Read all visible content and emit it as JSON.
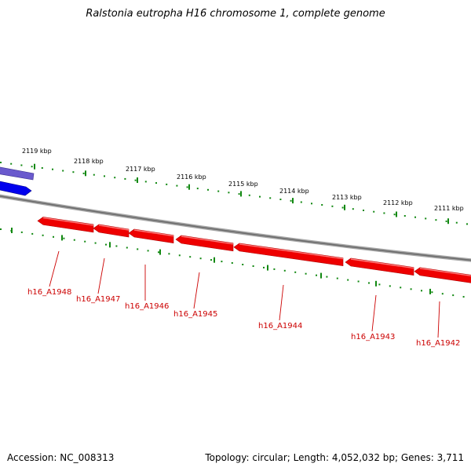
{
  "title": "Ralstonia eutropha H16 chromosome 1, complete genome",
  "footer": {
    "accession": "Accession: NC_008313",
    "topology": "Topology: circular; Length: 4,052,032 bp; Genes: 3,711"
  },
  "colors": {
    "backbone": "#7a7a7a",
    "forward_gene_blue": "#0000ee",
    "forward_gene_purple": "#6a5acd",
    "reverse_gene": "#ee0000",
    "gene_label": "#cc0000",
    "ticks": "#118811"
  },
  "ticks": [
    "2119 kbp",
    "2118 kbp",
    "2117 kbp",
    "2116 kbp",
    "2115 kbp",
    "2114 kbp",
    "2113 kbp",
    "2112 kbp",
    "2111 kbp"
  ],
  "genes": [
    {
      "label": "h16_A1948",
      "strand": "reverse"
    },
    {
      "label": "h16_A1947",
      "strand": "reverse"
    },
    {
      "label": "h16_A1946",
      "strand": "reverse"
    },
    {
      "label": "h16_A1945",
      "strand": "reverse"
    },
    {
      "label": "h16_A1944",
      "strand": "reverse"
    },
    {
      "label": "h16_A1943",
      "strand": "reverse"
    },
    {
      "label": "h16_A1942",
      "strand": "reverse"
    }
  ]
}
